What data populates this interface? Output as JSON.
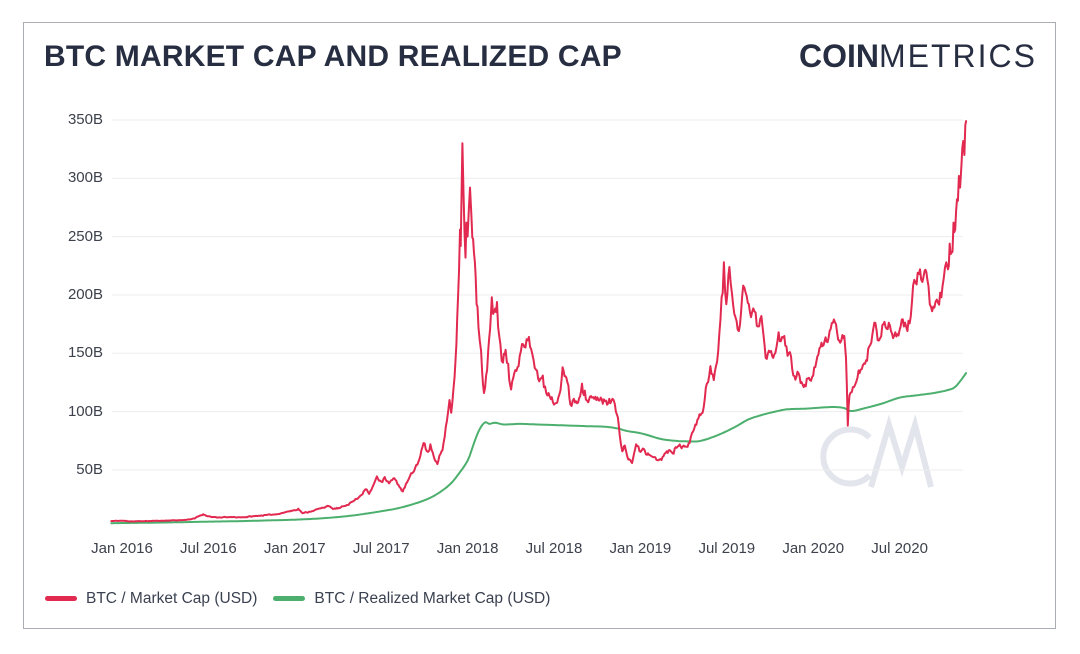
{
  "header": {
    "title": "BTC MARKET CAP AND REALIZED CAP",
    "logo_bold": "COIN",
    "logo_light": "METRICS"
  },
  "watermark": "CM",
  "chart_data": {
    "type": "line",
    "title": "BTC MARKET CAP AND REALIZED CAP",
    "x_ticks": [
      "Jan 2016",
      "Jul 2016",
      "Jan 2017",
      "Jul 2017",
      "Jan 2018",
      "Jul 2018",
      "Jan 2019",
      "Jul 2019",
      "Jan 2020",
      "Jul 2020"
    ],
    "x_tick_times": [
      2016.0,
      2016.5,
      2017.0,
      2017.5,
      2018.0,
      2018.5,
      2019.0,
      2019.5,
      2020.0,
      2020.5
    ],
    "y_ticks": [
      "50B",
      "100B",
      "150B",
      "200B",
      "250B",
      "300B",
      "350B"
    ],
    "y_tick_values": [
      50,
      100,
      150,
      200,
      250,
      300,
      350
    ],
    "xlim": [
      2015.938,
      2020.885
    ],
    "ylim": [
      0,
      370
    ],
    "grid": "horizontal",
    "grid_color": "#ededed",
    "legend_position": "bottom-left",
    "units": "USD billions",
    "series": [
      {
        "name": "BTC / Market Cap (USD)",
        "color": "#e22950",
        "jitter": 0.036,
        "points": [
          [
            2015.938,
            6.2
          ],
          [
            2016.0,
            6.5
          ],
          [
            2016.05,
            5.9
          ],
          [
            2016.12,
            6.1
          ],
          [
            2016.2,
            6.4
          ],
          [
            2016.28,
            6.7
          ],
          [
            2016.36,
            7.1
          ],
          [
            2016.42,
            8.4
          ],
          [
            2016.45,
            10.8
          ],
          [
            2016.47,
            12.0
          ],
          [
            2016.5,
            10.3
          ],
          [
            2016.55,
            9.2
          ],
          [
            2016.62,
            9.6
          ],
          [
            2016.7,
            9.4
          ],
          [
            2016.77,
            10.5
          ],
          [
            2016.84,
            11.5
          ],
          [
            2016.9,
            12.1
          ],
          [
            2016.96,
            14.4
          ],
          [
            2017.0,
            15.6
          ],
          [
            2017.02,
            16.8
          ],
          [
            2017.045,
            12.9
          ],
          [
            2017.1,
            14.7
          ],
          [
            2017.15,
            17.1
          ],
          [
            2017.19,
            19.3
          ],
          [
            2017.22,
            16.6
          ],
          [
            2017.26,
            17.3
          ],
          [
            2017.3,
            19.9
          ],
          [
            2017.34,
            23.5
          ],
          [
            2017.38,
            28
          ],
          [
            2017.41,
            33.5
          ],
          [
            2017.43,
            29.5
          ],
          [
            2017.455,
            37
          ],
          [
            2017.475,
            44.5
          ],
          [
            2017.5,
            40
          ],
          [
            2017.52,
            44
          ],
          [
            2017.545,
            38.5
          ],
          [
            2017.575,
            43
          ],
          [
            2017.6,
            37
          ],
          [
            2017.625,
            31.5
          ],
          [
            2017.655,
            41
          ],
          [
            2017.685,
            48
          ],
          [
            2017.715,
            57
          ],
          [
            2017.745,
            73
          ],
          [
            2017.765,
            66
          ],
          [
            2017.785,
            72
          ],
          [
            2017.805,
            61
          ],
          [
            2017.825,
            55
          ],
          [
            2017.855,
            67
          ],
          [
            2017.88,
            92
          ],
          [
            2017.895,
            110
          ],
          [
            2017.905,
            99
          ],
          [
            2017.925,
            130
          ],
          [
            2017.94,
            180
          ],
          [
            2017.95,
            220
          ],
          [
            2017.956,
            256
          ],
          [
            2017.96,
            242
          ],
          [
            2017.965,
            288
          ],
          [
            2017.97,
            330
          ],
          [
            2017.976,
            288
          ],
          [
            2017.982,
            254
          ],
          [
            2017.988,
            232
          ],
          [
            2017.993,
            262
          ],
          [
            2018.0,
            250
          ],
          [
            2018.008,
            276
          ],
          [
            2018.014,
            292
          ],
          [
            2018.022,
            268
          ],
          [
            2018.032,
            248
          ],
          [
            2018.042,
            228
          ],
          [
            2018.052,
            192
          ],
          [
            2018.063,
            172
          ],
          [
            2018.078,
            152
          ],
          [
            2018.095,
            116
          ],
          [
            2018.107,
            131
          ],
          [
            2018.125,
            163
          ],
          [
            2018.14,
            198
          ],
          [
            2018.155,
            186
          ],
          [
            2018.17,
            194
          ],
          [
            2018.19,
            158
          ],
          [
            2018.205,
            142
          ],
          [
            2018.22,
            153
          ],
          [
            2018.235,
            141
          ],
          [
            2018.252,
            119
          ],
          [
            2018.27,
            133
          ],
          [
            2018.295,
            139
          ],
          [
            2018.315,
            158
          ],
          [
            2018.335,
            155
          ],
          [
            2018.355,
            164
          ],
          [
            2018.375,
            149
          ],
          [
            2018.395,
            136
          ],
          [
            2018.415,
            126
          ],
          [
            2018.435,
            131
          ],
          [
            2018.455,
            116
          ],
          [
            2018.475,
            113
          ],
          [
            2018.5,
            106
          ],
          [
            2018.525,
            112
          ],
          [
            2018.55,
            138
          ],
          [
            2018.572,
            129
          ],
          [
            2018.595,
            106
          ],
          [
            2018.615,
            111
          ],
          [
            2018.64,
            108
          ],
          [
            2018.662,
            124
          ],
          [
            2018.678,
            118
          ],
          [
            2018.698,
            108
          ],
          [
            2018.72,
            112
          ],
          [
            2018.745,
            110
          ],
          [
            2018.77,
            112
          ],
          [
            2018.795,
            109
          ],
          [
            2018.82,
            111
          ],
          [
            2018.845,
            110
          ],
          [
            2018.865,
            97
          ],
          [
            2018.88,
            80
          ],
          [
            2018.895,
            66
          ],
          [
            2018.91,
            71
          ],
          [
            2018.93,
            59
          ],
          [
            2018.952,
            56
          ],
          [
            2018.975,
            72
          ],
          [
            2018.995,
            66
          ],
          [
            2019.02,
            68
          ],
          [
            2019.05,
            63
          ],
          [
            2019.08,
            61
          ],
          [
            2019.11,
            59
          ],
          [
            2019.14,
            64
          ],
          [
            2019.17,
            67
          ],
          [
            2019.21,
            69
          ],
          [
            2019.25,
            71
          ],
          [
            2019.285,
            73
          ],
          [
            2019.305,
            83
          ],
          [
            2019.33,
            93
          ],
          [
            2019.36,
            99
          ],
          [
            2019.385,
            124
          ],
          [
            2019.405,
            139
          ],
          [
            2019.425,
            127
          ],
          [
            2019.45,
            152
          ],
          [
            2019.47,
            198
          ],
          [
            2019.483,
            228
          ],
          [
            2019.497,
            192
          ],
          [
            2019.515,
            224
          ],
          [
            2019.53,
            201
          ],
          [
            2019.55,
            181
          ],
          [
            2019.57,
            169
          ],
          [
            2019.595,
            208
          ],
          [
            2019.615,
            199
          ],
          [
            2019.64,
            181
          ],
          [
            2019.66,
            186
          ],
          [
            2019.68,
            173
          ],
          [
            2019.7,
            182
          ],
          [
            2019.725,
            146
          ],
          [
            2019.75,
            151
          ],
          [
            2019.775,
            149
          ],
          [
            2019.8,
            168
          ],
          [
            2019.82,
            164
          ],
          [
            2019.845,
            156
          ],
          [
            2019.865,
            151
          ],
          [
            2019.885,
            131
          ],
          [
            2019.915,
            133
          ],
          [
            2019.945,
            121
          ],
          [
            2019.975,
            129
          ],
          [
            2020.0,
            131
          ],
          [
            2020.03,
            149
          ],
          [
            2020.06,
            157
          ],
          [
            2020.095,
            169
          ],
          [
            2020.12,
            179
          ],
          [
            2020.15,
            161
          ],
          [
            2020.175,
            163
          ],
          [
            2020.19,
            146
          ],
          [
            2020.2,
            88
          ],
          [
            2020.21,
            114
          ],
          [
            2020.23,
            121
          ],
          [
            2020.25,
            126
          ],
          [
            2020.275,
            136
          ],
          [
            2020.3,
            141
          ],
          [
            2020.33,
            157
          ],
          [
            2020.36,
            176
          ],
          [
            2020.38,
            161
          ],
          [
            2020.4,
            174
          ],
          [
            2020.425,
            171
          ],
          [
            2020.45,
            169
          ],
          [
            2020.475,
            168
          ],
          [
            2020.5,
            170
          ],
          [
            2020.525,
            173
          ],
          [
            2020.545,
            169
          ],
          [
            2020.565,
            182
          ],
          [
            2020.585,
            213
          ],
          [
            2020.605,
            219
          ],
          [
            2020.625,
            213
          ],
          [
            2020.645,
            221
          ],
          [
            2020.66,
            214
          ],
          [
            2020.675,
            192
          ],
          [
            2020.695,
            190
          ],
          [
            2020.715,
            196
          ],
          [
            2020.735,
            202
          ],
          [
            2020.755,
            214
          ],
          [
            2020.77,
            228
          ],
          [
            2020.78,
            222
          ],
          [
            2020.79,
            244
          ],
          [
            2020.8,
            236
          ],
          [
            2020.812,
            262
          ],
          [
            2020.822,
            256
          ],
          [
            2020.832,
            282
          ],
          [
            2020.843,
            302
          ],
          [
            2020.85,
            292
          ],
          [
            2020.858,
            312
          ],
          [
            2020.868,
            332
          ],
          [
            2020.875,
            320
          ],
          [
            2020.885,
            349
          ]
        ]
      },
      {
        "name": "BTC / Realized Market Cap (USD)",
        "color": "#4caf6d",
        "jitter": 0,
        "points": [
          [
            2015.938,
            4.4
          ],
          [
            2016.0,
            4.5
          ],
          [
            2016.17,
            4.8
          ],
          [
            2016.33,
            5.2
          ],
          [
            2016.5,
            5.7
          ],
          [
            2016.67,
            6.1
          ],
          [
            2016.83,
            6.7
          ],
          [
            2017.0,
            7.4
          ],
          [
            2017.17,
            8.7
          ],
          [
            2017.33,
            10.9
          ],
          [
            2017.5,
            14.6
          ],
          [
            2017.62,
            18
          ],
          [
            2017.75,
            24
          ],
          [
            2017.83,
            30
          ],
          [
            2017.9,
            38
          ],
          [
            2017.95,
            47
          ],
          [
            2018.0,
            58
          ],
          [
            2018.03,
            70
          ],
          [
            2018.06,
            82
          ],
          [
            2018.085,
            88.5
          ],
          [
            2018.105,
            91
          ],
          [
            2018.125,
            89.5
          ],
          [
            2018.16,
            90.5
          ],
          [
            2018.21,
            89
          ],
          [
            2018.3,
            89.5
          ],
          [
            2018.4,
            89
          ],
          [
            2018.5,
            88.5
          ],
          [
            2018.6,
            88
          ],
          [
            2018.7,
            87.5
          ],
          [
            2018.8,
            87
          ],
          [
            2018.87,
            85.5
          ],
          [
            2018.92,
            83.5
          ],
          [
            2019.0,
            81.5
          ],
          [
            2019.05,
            79.5
          ],
          [
            2019.12,
            76.5
          ],
          [
            2019.2,
            75
          ],
          [
            2019.28,
            74.5
          ],
          [
            2019.35,
            75
          ],
          [
            2019.45,
            80
          ],
          [
            2019.55,
            87
          ],
          [
            2019.62,
            93
          ],
          [
            2019.7,
            97
          ],
          [
            2019.78,
            100
          ],
          [
            2019.85,
            102
          ],
          [
            2019.95,
            102.5
          ],
          [
            2020.05,
            103.5
          ],
          [
            2020.12,
            104
          ],
          [
            2020.18,
            103
          ],
          [
            2020.22,
            100.5
          ],
          [
            2020.3,
            103
          ],
          [
            2020.4,
            107
          ],
          [
            2020.5,
            112
          ],
          [
            2020.6,
            114
          ],
          [
            2020.7,
            116
          ],
          [
            2020.78,
            118.5
          ],
          [
            2020.82,
            121
          ],
          [
            2020.85,
            126
          ],
          [
            2020.87,
            130
          ],
          [
            2020.885,
            133
          ]
        ]
      }
    ],
    "jitter_seed": 11
  }
}
